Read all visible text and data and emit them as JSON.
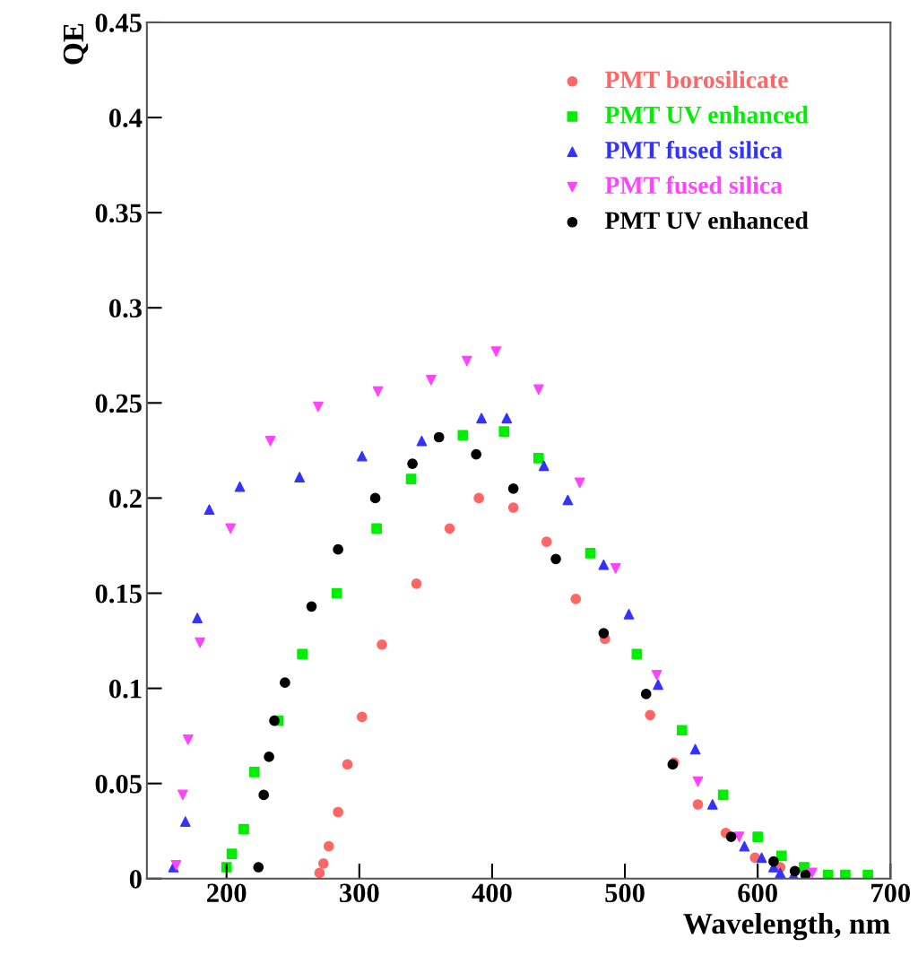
{
  "chart_data": {
    "type": "scatter",
    "xlabel": "Wavelength, nm",
    "ylabel": "QE",
    "xlim": [
      140,
      700
    ],
    "xticks": [
      200,
      300,
      400,
      500,
      600,
      700
    ],
    "ylim": [
      0,
      0.45
    ],
    "yticks": [
      0,
      0.05,
      0.1,
      0.15,
      0.2,
      0.25,
      0.3,
      0.35,
      0.4,
      0.45
    ],
    "grid": false,
    "legend": "top right",
    "series": [
      {
        "name": "PMT borosilicate",
        "color": "#ff6666",
        "marker": "circle",
        "x": [
          270,
          273,
          277,
          284,
          291,
          302,
          317,
          343,
          368,
          390,
          416,
          441,
          463,
          485,
          519,
          537,
          555,
          576,
          598,
          617
        ],
        "values": [
          0.003,
          0.008,
          0.017,
          0.035,
          0.06,
          0.085,
          0.123,
          0.155,
          0.184,
          0.2,
          0.195,
          0.177,
          0.147,
          0.126,
          0.086,
          0.061,
          0.039,
          0.024,
          0.011,
          0.006
        ]
      },
      {
        "name": "PMT UV enhanced",
        "color": "#00ee00",
        "marker": "square",
        "x": [
          200,
          204,
          213,
          221,
          239,
          257,
          283,
          313,
          339,
          378,
          409,
          435,
          474,
          509,
          543,
          574,
          600,
          618,
          635,
          653,
          666,
          683
        ],
        "values": [
          0.006,
          0.013,
          0.026,
          0.056,
          0.083,
          0.118,
          0.15,
          0.184,
          0.21,
          0.233,
          0.235,
          0.221,
          0.171,
          0.118,
          0.078,
          0.044,
          0.022,
          0.012,
          0.006,
          0.002,
          0.002,
          0.002
        ]
      },
      {
        "name": "PMT fused silica",
        "color": "#3333ff",
        "marker": "triangle",
        "x": [
          160,
          169,
          178,
          187,
          210,
          255,
          302,
          347,
          392,
          411,
          439,
          457,
          484,
          503,
          525,
          553,
          566,
          590,
          603,
          612,
          617,
          627
        ],
        "values": [
          0.006,
          0.03,
          0.137,
          0.194,
          0.206,
          0.211,
          0.222,
          0.23,
          0.242,
          0.242,
          0.217,
          0.199,
          0.165,
          0.139,
          0.102,
          0.068,
          0.039,
          0.017,
          0.011,
          0.006,
          0.003,
          0.002
        ]
      },
      {
        "name": "PMT fused silica",
        "color": "#ff44ff",
        "marker": "triangle_down",
        "x": [
          162,
          167,
          171,
          180,
          203,
          233,
          269,
          314,
          354,
          381,
          403,
          435,
          466,
          493,
          524,
          555,
          586,
          641
        ],
        "values": [
          0.007,
          0.044,
          0.073,
          0.124,
          0.184,
          0.23,
          0.248,
          0.256,
          0.262,
          0.272,
          0.277,
          0.257,
          0.208,
          0.163,
          0.107,
          0.051,
          0.022,
          0.003
        ]
      },
      {
        "name": "PMT UV enhanced",
        "color": "#000000",
        "marker": "circle",
        "x": [
          224,
          228,
          232,
          236,
          244,
          264,
          284,
          312,
          340,
          360,
          388,
          416,
          448,
          484,
          516,
          536,
          580,
          612,
          628,
          636
        ],
        "values": [
          0.006,
          0.044,
          0.064,
          0.083,
          0.103,
          0.143,
          0.173,
          0.2,
          0.218,
          0.232,
          0.223,
          0.205,
          0.168,
          0.129,
          0.097,
          0.06,
          0.022,
          0.009,
          0.004,
          0.002
        ]
      }
    ]
  }
}
